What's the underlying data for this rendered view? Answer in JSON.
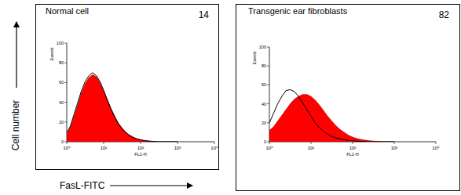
{
  "y_label": "Cell number",
  "x_label": "FasL-FITC",
  "chart_data": [
    {
      "type": "area",
      "title": "Normal cell",
      "annotation": "14",
      "x_label": "FL1-H",
      "y_label": "Events",
      "log": "x",
      "xlim": [
        1,
        10000
      ],
      "xticks": [
        {
          "value": 1,
          "label": "10⁰"
        },
        {
          "value": 10,
          "label": "10¹"
        },
        {
          "value": 100,
          "label": "10²"
        },
        {
          "value": 1000,
          "label": "10³"
        },
        {
          "value": 10000,
          "label": "10⁴"
        }
      ],
      "ylim": [
        0,
        100
      ],
      "yticks": [
        0,
        20,
        40,
        60,
        80,
        100
      ],
      "x": [
        1,
        1.26,
        1.58,
        2,
        2.51,
        3.16,
        3.98,
        5.01,
        6.31,
        7.94,
        10,
        12.6,
        15.8,
        20,
        25.1,
        31.6,
        39.8,
        50.1,
        63.1,
        79.4,
        100,
        126,
        158,
        200,
        251,
        316,
        398,
        501,
        631,
        794,
        1000
      ],
      "series": [
        {
          "type": "area",
          "color": "#ff0000",
          "values": [
            8,
            15,
            26,
            38,
            50,
            59,
            65,
            68,
            66,
            60,
            52,
            43,
            34,
            26,
            19,
            14,
            10,
            7,
            5,
            3,
            2,
            1.5,
            1,
            0.5,
            0.3,
            0,
            0,
            0,
            0,
            0,
            0
          ]
        },
        {
          "type": "line",
          "color": "#000000",
          "values": [
            9,
            16,
            28,
            40,
            52,
            61,
            67,
            70,
            67,
            61,
            52,
            42,
            33,
            25,
            18,
            13,
            9,
            6,
            4,
            3,
            2,
            1,
            0.8,
            0.4,
            0.2,
            0,
            0,
            0,
            0,
            0,
            0
          ]
        }
      ]
    },
    {
      "type": "area",
      "title": "Transgenic ear fibroblasts",
      "annotation": "82",
      "x_label": "FL1-H",
      "y_label": "Events",
      "log": "x",
      "xlim": [
        1,
        10000
      ],
      "xticks": [
        {
          "value": 1,
          "label": "10⁰"
        },
        {
          "value": 10,
          "label": "10¹"
        },
        {
          "value": 100,
          "label": "10²"
        },
        {
          "value": 1000,
          "label": "10³"
        },
        {
          "value": 10000,
          "label": "10⁴"
        }
      ],
      "ylim": [
        0,
        100
      ],
      "yticks": [
        0,
        20,
        40,
        60,
        80,
        100
      ],
      "x": [
        1,
        1.26,
        1.58,
        2,
        2.51,
        3.16,
        3.98,
        5.01,
        6.31,
        7.94,
        10,
        12.6,
        15.8,
        20,
        25.1,
        31.6,
        39.8,
        50.1,
        63.1,
        79.4,
        100,
        126,
        158,
        200,
        251,
        316,
        398,
        501,
        631,
        794,
        1000
      ],
      "series": [
        {
          "type": "area",
          "color": "#ff0000",
          "values": [
            12,
            16,
            22,
            28,
            34,
            40,
            45,
            48,
            50,
            50,
            48,
            44,
            39,
            33,
            27,
            22,
            17,
            13,
            10,
            7,
            5,
            3.5,
            2.5,
            1.8,
            1.2,
            0.8,
            0.5,
            0.3,
            0.1,
            0,
            0
          ]
        },
        {
          "type": "line",
          "color": "#000000",
          "values": [
            20,
            30,
            40,
            48,
            54,
            55,
            53,
            48,
            41,
            34,
            27,
            20,
            15,
            11,
            8,
            5.5,
            4,
            3,
            2,
            1.5,
            1,
            0.6,
            0.4,
            0.2,
            0,
            0,
            0,
            0,
            0,
            0,
            0
          ]
        }
      ]
    }
  ]
}
